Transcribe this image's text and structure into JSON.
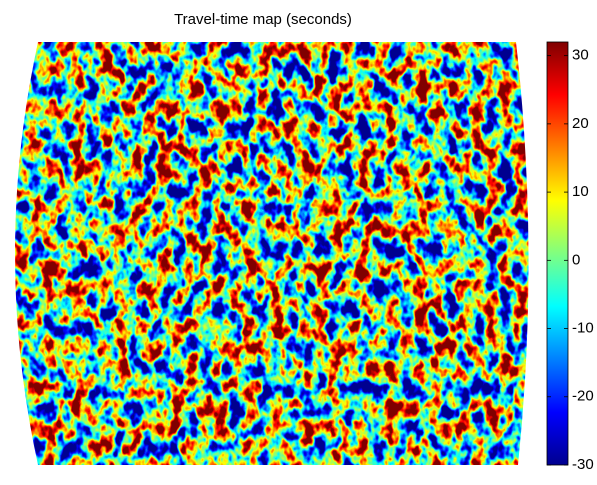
{
  "chart_data": {
    "type": "heatmap",
    "title": "Travel-time map (seconds)",
    "clim": [
      -30,
      32
    ],
    "cticks": [
      -30,
      -20,
      -10,
      0,
      10,
      20,
      30
    ],
    "colormap": [
      "#00008f",
      "#0000ff",
      "#0080ff",
      "#00ffff",
      "#80ff80",
      "#ffff00",
      "#ff8000",
      "#ff0000",
      "#800000"
    ]
  }
}
